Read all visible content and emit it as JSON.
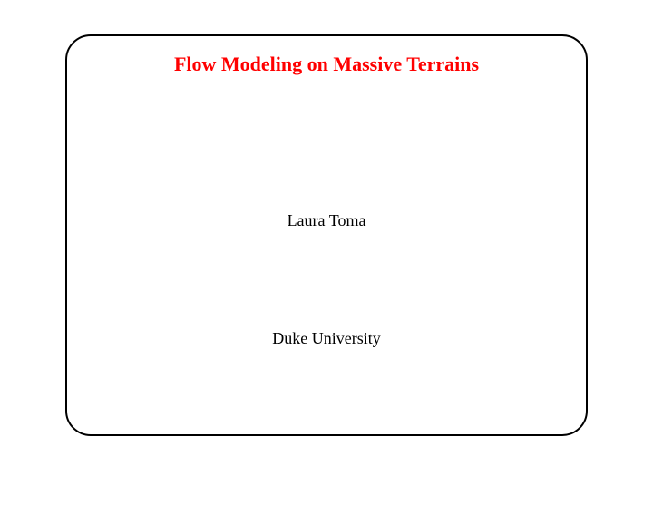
{
  "slide": {
    "title": "Flow Modeling on Massive Terrains",
    "author": "Laura Toma",
    "affiliation": "Duke University",
    "title_color": "#ff0000",
    "text_color": "#000000",
    "border_color": "#000000",
    "background_color": "#ffffff",
    "title_fontsize": 22,
    "body_fontsize": 18,
    "border_width": 2.5,
    "border_radius": 28
  }
}
